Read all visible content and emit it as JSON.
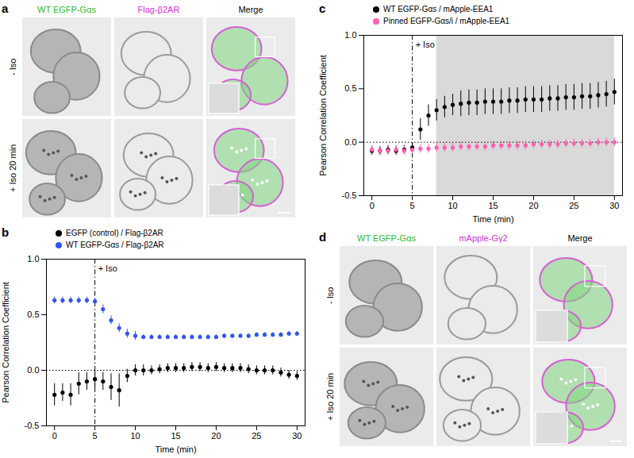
{
  "image_panels": [
    {
      "panel_label": "a",
      "columns": [
        {
          "text": "WT EGFP-Gαs",
          "color": "#2db82d"
        },
        {
          "text": "Flag-β2AR",
          "color": "#d62fd6"
        },
        {
          "text": "Merge",
          "color": "#000000"
        }
      ],
      "rows": [
        "- Iso",
        "+ Iso 20 min"
      ]
    },
    {
      "panel_label": "d",
      "columns": [
        {
          "text": "WT EGFP-Gαs",
          "color": "#2db82d"
        },
        {
          "text": "mApple-Gγ2",
          "color": "#d62fd6"
        },
        {
          "text": "Merge",
          "color": "#000000"
        }
      ],
      "rows": [
        "- Iso",
        "+ Iso 20 min"
      ]
    }
  ],
  "chart_data": [
    {
      "panel_label": "b",
      "type": "scatter",
      "marker": "circle",
      "x": [
        0,
        1,
        2,
        3,
        4,
        5,
        6,
        7,
        8,
        9,
        10,
        11,
        12,
        13,
        14,
        15,
        16,
        17,
        18,
        19,
        20,
        21,
        22,
        23,
        24,
        25,
        26,
        27,
        28,
        29,
        30
      ],
      "series": [
        {
          "name": "EGFP (control) / Flag-β2AR",
          "color": "#000000",
          "values": [
            -0.22,
            -0.2,
            -0.22,
            -0.12,
            -0.1,
            -0.08,
            -0.1,
            -0.15,
            -0.18,
            -0.05,
            0.0,
            0.0,
            0.0,
            0.01,
            0.02,
            0.02,
            0.02,
            0.03,
            0.03,
            0.02,
            0.03,
            0.02,
            0.02,
            0.02,
            0.01,
            0.0,
            0.0,
            0.0,
            -0.02,
            -0.04,
            -0.05
          ],
          "errors": [
            0.1,
            0.08,
            0.1,
            0.1,
            0.08,
            0.08,
            0.08,
            0.12,
            0.15,
            0.06,
            0.05,
            0.05,
            0.04,
            0.04,
            0.04,
            0.04,
            0.04,
            0.04,
            0.04,
            0.04,
            0.04,
            0.04,
            0.04,
            0.04,
            0.04,
            0.04,
            0.04,
            0.04,
            0.04,
            0.04,
            0.04
          ]
        },
        {
          "name": "WT EGFP-Gαs / Flag-β2AR",
          "color": "#3355ee",
          "values": [
            0.63,
            0.63,
            0.63,
            0.63,
            0.63,
            0.62,
            0.55,
            0.45,
            0.38,
            0.33,
            0.31,
            0.3,
            0.3,
            0.3,
            0.3,
            0.3,
            0.3,
            0.3,
            0.3,
            0.3,
            0.3,
            0.31,
            0.31,
            0.31,
            0.31,
            0.32,
            0.32,
            0.32,
            0.32,
            0.33,
            0.33
          ],
          "errors": [
            0.03,
            0.03,
            0.03,
            0.03,
            0.03,
            0.03,
            0.04,
            0.04,
            0.04,
            0.04,
            0.04,
            0.02,
            0.02,
            0.02,
            0.02,
            0.02,
            0.02,
            0.02,
            0.02,
            0.02,
            0.02,
            0.02,
            0.02,
            0.02,
            0.02,
            0.02,
            0.02,
            0.02,
            0.02,
            0.02,
            0.02
          ]
        }
      ],
      "xlim": [
        -1,
        31
      ],
      "xticks": [
        0,
        5,
        10,
        15,
        20,
        25,
        30
      ],
      "ylim": [
        -0.5,
        1.0
      ],
      "yticks": [
        -0.5,
        {
          "value": 0,
          "label": "0.0"
        },
        0.5,
        {
          "value": 1,
          "label": "1.0"
        }
      ],
      "xlabel": "Time (min)",
      "ylabel": "Pearson Correlation Coefficient",
      "annotations": [
        {
          "text": "+ Iso",
          "x": 5
        }
      ],
      "reference_line_y": 0,
      "legend": "top"
    },
    {
      "panel_label": "c",
      "type": "scatter",
      "marker": "circle",
      "x": [
        0,
        1,
        2,
        3,
        4,
        5,
        6,
        7,
        8,
        9,
        10,
        11,
        12,
        13,
        14,
        15,
        16,
        17,
        18,
        19,
        20,
        21,
        22,
        23,
        24,
        25,
        26,
        27,
        28,
        29,
        30
      ],
      "series": [
        {
          "name": "WT EGFP-Gαs / mApple-EEA1",
          "color": "#000000",
          "values": [
            -0.08,
            -0.08,
            -0.07,
            -0.08,
            -0.07,
            -0.05,
            0.12,
            0.25,
            0.3,
            0.33,
            0.35,
            0.36,
            0.37,
            0.37,
            0.38,
            0.38,
            0.38,
            0.39,
            0.39,
            0.4,
            0.4,
            0.4,
            0.41,
            0.41,
            0.42,
            0.42,
            0.43,
            0.43,
            0.44,
            0.45,
            0.47
          ],
          "errors": [
            0.04,
            0.04,
            0.04,
            0.04,
            0.04,
            0.04,
            0.1,
            0.1,
            0.1,
            0.1,
            0.1,
            0.12,
            0.12,
            0.12,
            0.12,
            0.12,
            0.12,
            0.12,
            0.12,
            0.12,
            0.12,
            0.12,
            0.12,
            0.12,
            0.12,
            0.12,
            0.12,
            0.12,
            0.12,
            0.12,
            0.12
          ]
        },
        {
          "name": "Pinned EGFP-Gαs/i / mApple-EEA1",
          "color": "#ff5fb4",
          "values": [
            -0.07,
            -0.08,
            -0.08,
            -0.07,
            -0.08,
            -0.07,
            -0.06,
            -0.06,
            -0.05,
            -0.05,
            -0.05,
            -0.04,
            -0.04,
            -0.04,
            -0.04,
            -0.03,
            -0.03,
            -0.03,
            -0.03,
            -0.03,
            -0.02,
            -0.02,
            -0.02,
            -0.02,
            -0.01,
            -0.01,
            -0.01,
            -0.01,
            0.0,
            0.0,
            0.0
          ],
          "errors": [
            0.04,
            0.04,
            0.04,
            0.04,
            0.04,
            0.04,
            0.04,
            0.04,
            0.04,
            0.04,
            0.04,
            0.04,
            0.04,
            0.04,
            0.04,
            0.04,
            0.04,
            0.04,
            0.04,
            0.04,
            0.04,
            0.04,
            0.04,
            0.04,
            0.04,
            0.04,
            0.04,
            0.04,
            0.04,
            0.04,
            0.04
          ]
        }
      ],
      "xlim": [
        -1,
        31
      ],
      "xticks": [
        0,
        5,
        10,
        15,
        20,
        25,
        30
      ],
      "ylim": [
        -0.5,
        1.0
      ],
      "yticks": [
        -0.5,
        {
          "value": 0,
          "label": "0.0"
        },
        0.5,
        {
          "value": 1,
          "label": "1.0"
        }
      ],
      "xlabel": "Time (min)",
      "ylabel": "Pearson Correlation Coefficient",
      "annotations": [
        {
          "text": "+ Iso",
          "x": 5
        }
      ],
      "reference_line_y": 0,
      "shaded_x": [
        8,
        30
      ],
      "legend": "top"
    }
  ]
}
